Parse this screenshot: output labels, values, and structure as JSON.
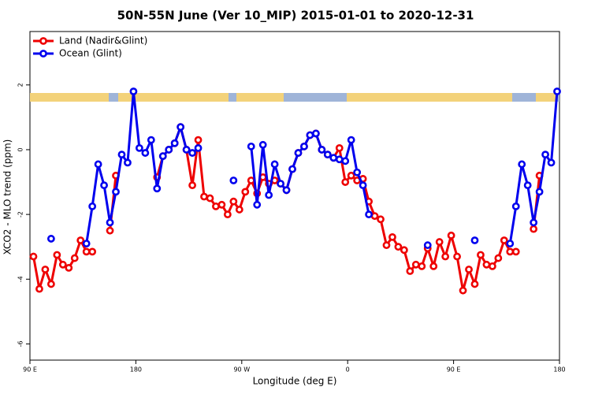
{
  "chart_data": {
    "type": "line",
    "title": "50N-55N June (Ver 10_MIP)   2015-01-01 to 2020-12-31",
    "x_label": "Longitude (deg E)",
    "y_label": "XCO2 - MLO trend (ppm)",
    "xlim": [
      90,
      540
    ],
    "ylim": [
      -6.5,
      3.65
    ],
    "xticks": [
      {
        "value": 90,
        "label": "90 E"
      },
      180,
      {
        "value": 270,
        "label": "90 W"
      },
      {
        "value": 360,
        "label": "0"
      },
      {
        "value": 450,
        "label": "90 E"
      },
      {
        "value": 540,
        "label": "180"
      }
    ],
    "yticks": [
      -6,
      -4,
      -2,
      0,
      2
    ],
    "legend": "top-left",
    "x": [
      93,
      98,
      103,
      108,
      113,
      118,
      123,
      128,
      133,
      138,
      143,
      148,
      153,
      158,
      163,
      168,
      173,
      178,
      183,
      188,
      193,
      198,
      203,
      208,
      213,
      218,
      223,
      228,
      233,
      238,
      243,
      248,
      253,
      258,
      263,
      268,
      273,
      278,
      283,
      288,
      293,
      298,
      303,
      308,
      313,
      318,
      323,
      328,
      333,
      338,
      343,
      348,
      353,
      358,
      363,
      368,
      373,
      378,
      383,
      388,
      393,
      398,
      403,
      408,
      413,
      418,
      423,
      428,
      433,
      438,
      443,
      448,
      453,
      458,
      463,
      468,
      473,
      478,
      483,
      488,
      493,
      498,
      503,
      508,
      513,
      518,
      523,
      528,
      533,
      538
    ],
    "series": [
      {
        "name": "Land (Nadir&Glint)",
        "color": "#ee0000",
        "values": [
          -3.3,
          -4.3,
          -3.7,
          -4.15,
          -3.25,
          -3.55,
          -3.65,
          -3.35,
          -2.8,
          -3.15,
          -3.15,
          null,
          null,
          -2.5,
          -0.8,
          null,
          null,
          null,
          null,
          null,
          null,
          -0.85,
          -0.2,
          0.0,
          0.2,
          0.7,
          0.0,
          -1.1,
          0.3,
          -1.45,
          -1.5,
          -1.75,
          -1.7,
          -2.0,
          -1.6,
          -1.85,
          -1.3,
          -0.95,
          -1.35,
          -0.85,
          -1.05,
          -0.95,
          -1.05,
          -1.25,
          -0.6,
          -0.1,
          0.1,
          0.45,
          0.5,
          0.0,
          -0.15,
          -0.25,
          0.05,
          -1.0,
          -0.8,
          -0.95,
          -0.9,
          -1.6,
          -2.05,
          -2.15,
          -2.95,
          -2.7,
          -3.0,
          -3.1,
          -3.75,
          -3.55,
          -3.6,
          -3.05,
          -3.6,
          -2.85,
          -3.3,
          -2.65,
          -3.3,
          -4.35,
          -3.7,
          -4.15,
          -3.25,
          -3.55,
          -3.6,
          -3.35,
          -2.8,
          -3.15,
          -3.15,
          null,
          null,
          -2.45,
          -0.8,
          null,
          null,
          null
        ]
      },
      {
        "name": "Ocean (Glint)",
        "color": "#0000ee",
        "values": [
          null,
          null,
          null,
          -2.75,
          null,
          null,
          null,
          null,
          null,
          -2.9,
          -1.75,
          -0.45,
          -1.1,
          -2.25,
          -1.3,
          -0.15,
          -0.4,
          1.8,
          0.05,
          -0.1,
          0.3,
          -1.2,
          -0.2,
          0.0,
          0.2,
          0.7,
          0.0,
          -0.1,
          0.05,
          null,
          null,
          null,
          null,
          null,
          -0.95,
          null,
          null,
          0.1,
          -1.7,
          0.15,
          -1.4,
          -0.45,
          -1.05,
          -1.25,
          -0.6,
          -0.1,
          0.1,
          0.45,
          0.5,
          0.0,
          -0.15,
          -0.25,
          -0.3,
          -0.35,
          0.3,
          -0.7,
          -1.1,
          -2.0,
          null,
          null,
          null,
          null,
          null,
          null,
          null,
          null,
          null,
          -2.95,
          null,
          null,
          null,
          null,
          null,
          null,
          null,
          -2.8,
          null,
          null,
          null,
          null,
          null,
          -2.9,
          -1.75,
          -0.45,
          -1.1,
          -2.25,
          -1.3,
          -0.15,
          -0.4,
          1.8
        ]
      }
    ]
  }
}
